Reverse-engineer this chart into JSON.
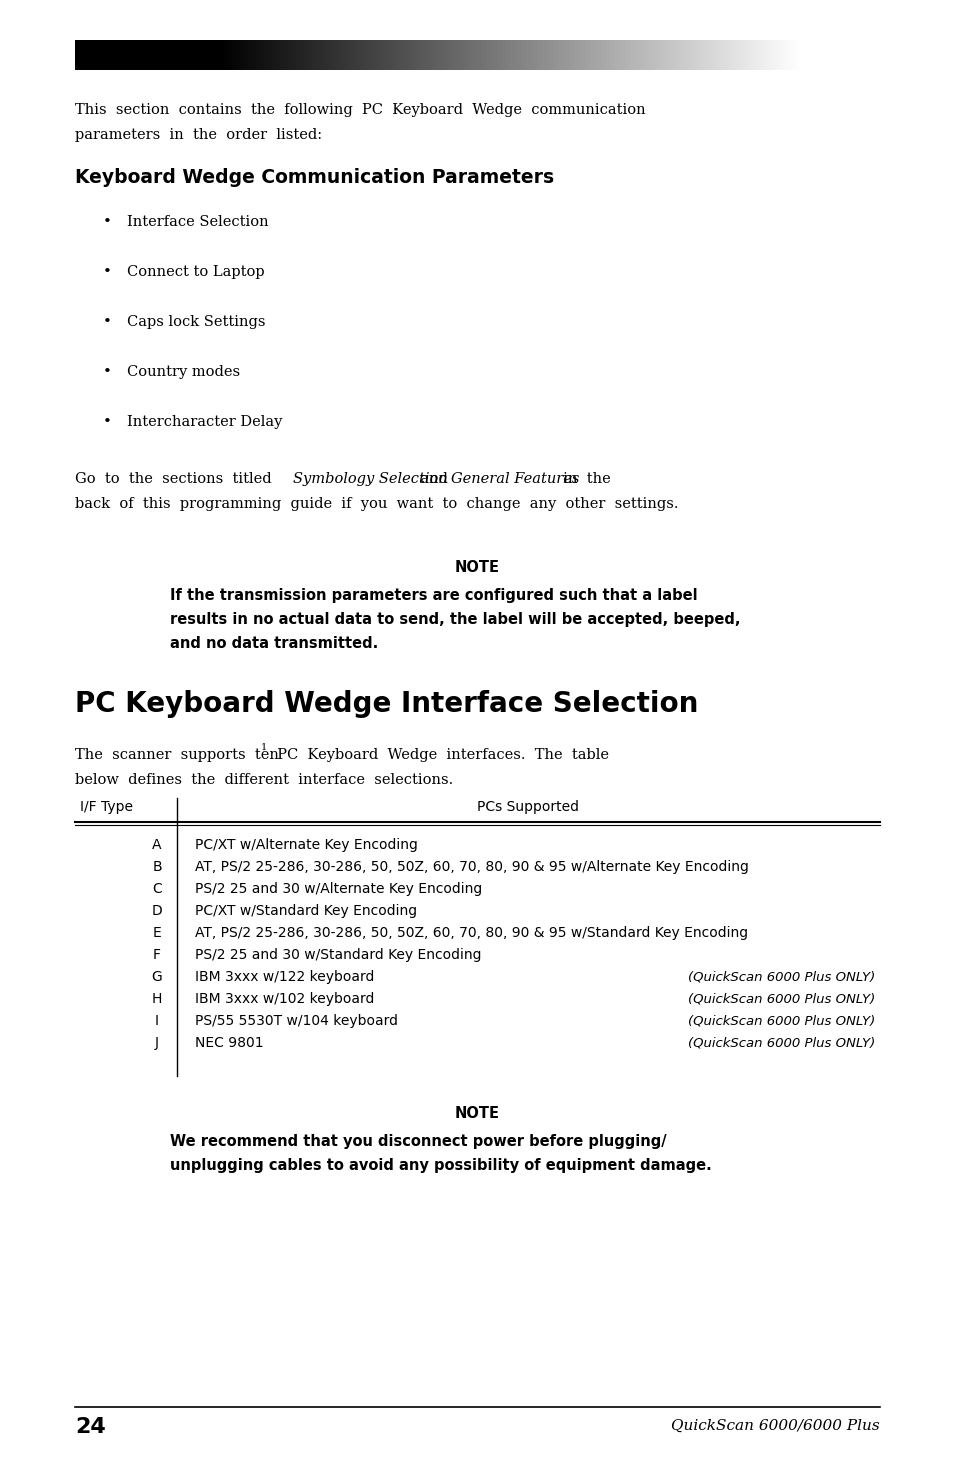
{
  "page_width": 9.54,
  "page_height": 14.75,
  "background_color": "#ffffff",
  "section1_title": "Keyboard Wedge Communication Parameters",
  "bullet_items": [
    "Interface Selection",
    "Connect to Laptop",
    "Caps lock Settings",
    "Country modes",
    "Intercharacter Delay"
  ],
  "note1_line1": "If the transmission parameters are configured such that a label",
  "note1_line2": "results in no actual data to send, the label will be accepted, beeped,",
  "note1_line3": "and no data transmitted.",
  "section2_title": "PC Keyboard Wedge Interface Selection",
  "table_header_col1": "I/F Type",
  "table_header_col2": "PCs Supported",
  "table_rows": [
    [
      "A",
      "PC/XT w/Alternate Key Encoding",
      ""
    ],
    [
      "B",
      "AT, PS/2 25-286, 30-286, 50, 50Z, 60, 70, 80, 90 & 95 w/Alternate Key Encoding",
      ""
    ],
    [
      "C",
      "PS/2 25 and 30 w/Alternate Key Encoding",
      ""
    ],
    [
      "D",
      "PC/XT w/Standard Key Encoding",
      ""
    ],
    [
      "E",
      "AT, PS/2 25-286, 30-286, 50, 50Z, 60, 70, 80, 90 & 95 w/Standard Key Encoding",
      ""
    ],
    [
      "F",
      "PS/2 25 and 30 w/Standard Key Encoding",
      ""
    ],
    [
      "G",
      "IBM 3xxx w/122 keyboard",
      "(QuickScan 6000 Plus ONLY)"
    ],
    [
      "H",
      "IBM 3xxx w/102 keyboard",
      "(QuickScan 6000 Plus ONLY)"
    ],
    [
      "I",
      "PS/55 5530T w/104 keyboard",
      "(QuickScan 6000 Plus ONLY)"
    ],
    [
      "J",
      "NEC 9801",
      "(QuickScan 6000 Plus ONLY)"
    ]
  ],
  "note2_line1": "We recommend that you disconnect power before plugging/",
  "note2_line2": "unplugging cables to avoid any possibility of equipment damage.",
  "footer_page": "24",
  "footer_product": "QuickScan 6000/6000 Plus"
}
